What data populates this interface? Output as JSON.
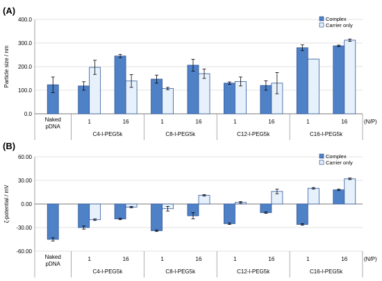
{
  "panel_a_label": "(A)",
  "panel_b_label": "(B)",
  "np_label": "(N/P)",
  "chart_data": [
    {
      "type": "bar",
      "ylabel": "Particle size / nm",
      "ylim": [
        0,
        400
      ],
      "yticks": [
        "0.0",
        "100.0",
        "200.0",
        "300.0",
        "400.0"
      ],
      "grid": true,
      "legend_position": "top-right",
      "series": [
        {
          "name": "Complex",
          "color": "#4f81c7",
          "fill": "solid"
        },
        {
          "name": "Carrier only",
          "color": "#e6f1fb",
          "fill": "light"
        }
      ],
      "groups": [
        {
          "label": "Naked\npDNA",
          "bars": [
            {
              "value": 123,
              "error": 33
            }
          ]
        },
        {
          "label": "C4-l-PEG5k",
          "sublabel": "1",
          "bars": [
            {
              "value": 118,
              "error": 18
            },
            {
              "value": 197,
              "error": 30
            }
          ]
        },
        {
          "label": "C4-l-PEG5k",
          "sublabel": "16",
          "bars": [
            {
              "value": 245,
              "error": 7
            },
            {
              "value": 139,
              "error": 27
            }
          ]
        },
        {
          "label": "C8-l-PEG5k",
          "sublabel": "1",
          "bars": [
            {
              "value": 147,
              "error": 17
            },
            {
              "value": 107,
              "error": 5
            }
          ]
        },
        {
          "label": "C8-l-PEG5k",
          "sublabel": "16",
          "bars": [
            {
              "value": 206,
              "error": 25
            },
            {
              "value": 170,
              "error": 20
            }
          ]
        },
        {
          "label": "C12-l-PEG5k",
          "sublabel": "1",
          "bars": [
            {
              "value": 130,
              "error": 5
            },
            {
              "value": 137,
              "error": 19
            }
          ]
        },
        {
          "label": "C12-l-PEG5k",
          "sublabel": "16",
          "bars": [
            {
              "value": 120,
              "error": 20
            },
            {
              "value": 130,
              "error": 45
            }
          ]
        },
        {
          "label": "C16-l-PEG5k",
          "sublabel": "1",
          "bars": [
            {
              "value": 280,
              "error": 12
            },
            {
              "value": 232,
              "error": 0
            }
          ]
        },
        {
          "label": "C16-l-PEG5k",
          "sublabel": "16",
          "bars": [
            {
              "value": 288,
              "error": 3
            },
            {
              "value": 312,
              "error": 5
            }
          ]
        }
      ],
      "category_groups": [
        "C4-l-PEG5k",
        "C8-l-PEG5k",
        "C12-l-PEG5k",
        "C16-l-PEG5k"
      ]
    },
    {
      "type": "bar",
      "ylabel": "ζ-potential / mV",
      "ylim": [
        -60,
        60
      ],
      "yticks": [
        "-60.00",
        "-30.00",
        "0.00",
        "30.00",
        "60.00"
      ],
      "grid": true,
      "legend_position": "top-right",
      "series": [
        {
          "name": "Complex",
          "color": "#4f81c7",
          "fill": "solid"
        },
        {
          "name": "Carrier only",
          "color": "#e6f1fb",
          "fill": "light"
        }
      ],
      "groups": [
        {
          "label": "Naked\npDNA",
          "bars": [
            {
              "value": -45,
              "error": 2
            }
          ]
        },
        {
          "label": "C4-l-PEG5k",
          "sublabel": "1",
          "bars": [
            {
              "value": -30,
              "error": 2
            },
            {
              "value": -20,
              "error": 1
            }
          ]
        },
        {
          "label": "C4-l-PEG5k",
          "sublabel": "16",
          "bars": [
            {
              "value": -19,
              "error": 1
            },
            {
              "value": -4,
              "error": 1
            }
          ]
        },
        {
          "label": "C8-l-PEG5k",
          "sublabel": "1",
          "bars": [
            {
              "value": -34,
              "error": 1
            },
            {
              "value": -6,
              "error": 3
            }
          ]
        },
        {
          "label": "C8-l-PEG5k",
          "sublabel": "16",
          "bars": [
            {
              "value": -15,
              "error": 4
            },
            {
              "value": 11,
              "error": 1
            }
          ]
        },
        {
          "label": "C12-l-PEG5k",
          "sublabel": "1",
          "bars": [
            {
              "value": -25,
              "error": 1
            },
            {
              "value": 2,
              "error": 1
            }
          ]
        },
        {
          "label": "C12-l-PEG5k",
          "sublabel": "16",
          "bars": [
            {
              "value": -11,
              "error": 1
            },
            {
              "value": 16,
              "error": 3
            }
          ]
        },
        {
          "label": "C16-l-PEG5k",
          "sublabel": "1",
          "bars": [
            {
              "value": -26,
              "error": 1
            },
            {
              "value": 20,
              "error": 1
            }
          ]
        },
        {
          "label": "C16-l-PEG5k",
          "sublabel": "16",
          "bars": [
            {
              "value": 18,
              "error": 1
            },
            {
              "value": 32,
              "error": 1
            }
          ]
        }
      ],
      "category_groups": [
        "C4-l-PEG5k",
        "C8-l-PEG5k",
        "C12-l-PEG5k",
        "C16-l-PEG5k"
      ]
    }
  ]
}
